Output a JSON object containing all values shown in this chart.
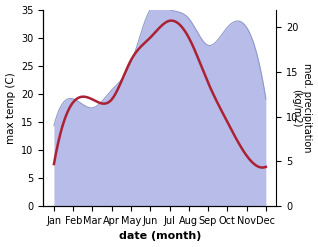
{
  "months": [
    "Jan",
    "Feb",
    "Mar",
    "Apr",
    "May",
    "Jun",
    "Jul",
    "Aug",
    "Sep",
    "Oct",
    "Nov",
    "Dec"
  ],
  "temperature": [
    7.5,
    18.5,
    19.0,
    19.0,
    26.0,
    30.0,
    33.0,
    30.0,
    22.0,
    15.0,
    9.0,
    7.0
  ],
  "precipitation": [
    9.0,
    12.0,
    11.0,
    13.0,
    16.0,
    22.0,
    22.0,
    21.0,
    18.0,
    20.0,
    20.0,
    12.0
  ],
  "temp_color": "#aa2233",
  "precip_fill_color": "#b8bce8",
  "precip_edge_color": "#9099cc",
  "temp_ylim": [
    0,
    35
  ],
  "precip_ylim": [
    0,
    22
  ],
  "temp_yticks": [
    0,
    5,
    10,
    15,
    20,
    25,
    30,
    35
  ],
  "precip_yticks": [
    0,
    5,
    10,
    15,
    20
  ],
  "xlabel": "date (month)",
  "ylabel_left": "max temp (C)",
  "ylabel_right": "med. precipitation\n(kg/m2)",
  "bg_color": "#ffffff",
  "line_width": 1.8,
  "smooth_points": 300
}
